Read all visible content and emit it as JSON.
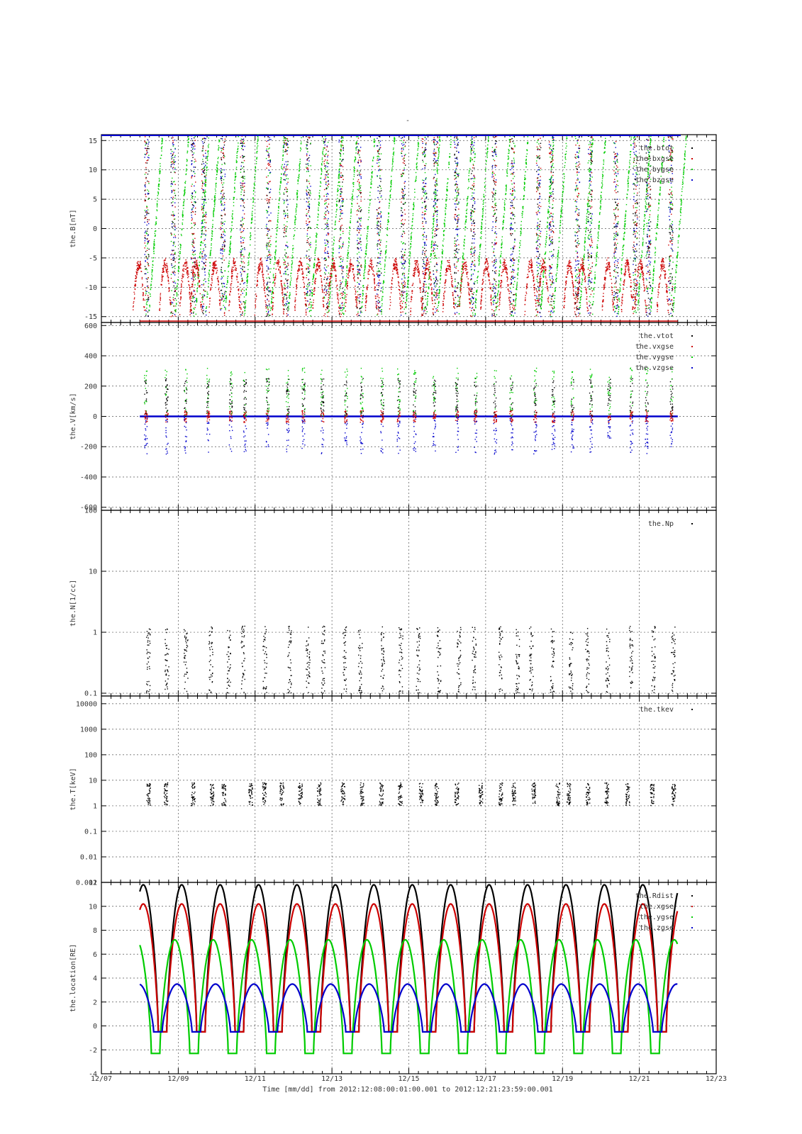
{
  "figure": {
    "top_mark": "-",
    "xaxis_label": "Time [mm/dd]  from 2012:12:08:00:01:00.001  to  2012:12:21:23:59:00.001",
    "xaxis_ticks": [
      "12/07",
      "12/09",
      "12/11",
      "12/13",
      "12/15",
      "12/17",
      "12/19",
      "12/21",
      "12/23"
    ]
  },
  "colors": {
    "black": "#000000",
    "red": "#cc0000",
    "green": "#00cc00",
    "blue": "#0000cc",
    "grid": "#555555"
  },
  "chart_data": [
    {
      "type": "scatter",
      "ylabel": "the.B[nT]",
      "ylim": [
        -16,
        16
      ],
      "yscale": "linear",
      "yticks": [
        15,
        10,
        5,
        0,
        -5,
        -10,
        -15
      ],
      "ytick_labels": [
        "15",
        "10",
        "5",
        "0",
        "-5",
        "-10",
        "-15"
      ],
      "xlim": [
        "12/07",
        "12/23"
      ],
      "grid": true,
      "legend_position": "top-right",
      "series": [
        {
          "name": "the.btot",
          "color": "black"
        },
        {
          "name": "the.bxgse",
          "color": "red"
        },
        {
          "name": "the.bygse",
          "color": "green"
        },
        {
          "name": "the.bzgse",
          "color": "blue"
        }
      ]
    },
    {
      "type": "scatter",
      "ylabel": "the.V[km/s]",
      "ylim": [
        -620,
        620
      ],
      "yscale": "linear",
      "yticks": [
        600,
        400,
        200,
        0,
        -200,
        -400,
        -600
      ],
      "ytick_labels": [
        "600",
        "400",
        "200",
        "0",
        "-200",
        "-400",
        "-600"
      ],
      "xlim": [
        "12/07",
        "12/23"
      ],
      "grid": true,
      "legend_position": "top-right",
      "series": [
        {
          "name": "the.vtot",
          "color": "black"
        },
        {
          "name": "the.vxgse",
          "color": "red"
        },
        {
          "name": "the.vygse",
          "color": "green"
        },
        {
          "name": "the.vzgse",
          "color": "blue"
        }
      ]
    },
    {
      "type": "scatter",
      "ylabel": "the.N[1/cc]",
      "ylim": [
        0.09,
        100
      ],
      "yscale": "log",
      "yticks": [
        100,
        10,
        1,
        0.1
      ],
      "ytick_labels": [
        "100",
        "10",
        "1",
        "0.1"
      ],
      "xlim": [
        "12/07",
        "12/23"
      ],
      "grid": true,
      "legend_position": "top-right",
      "series": [
        {
          "name": "the.Np",
          "color": "black"
        }
      ]
    },
    {
      "type": "scatter",
      "ylabel": "the.T[keV]",
      "ylim": [
        0.001,
        20000
      ],
      "yscale": "log",
      "yticks": [
        10000,
        1000,
        100,
        10,
        1,
        0.1,
        0.01,
        0.001
      ],
      "ytick_labels": [
        "10000",
        "1000",
        "100",
        "10",
        "1",
        "0.1",
        "0.01",
        "0.001"
      ],
      "xlim": [
        "12/07",
        "12/23"
      ],
      "grid": true,
      "legend_position": "top-right",
      "series": [
        {
          "name": "the.tkev",
          "color": "black"
        }
      ]
    },
    {
      "type": "line",
      "ylabel": "the.location[RE]",
      "ylim": [
        -4,
        12
      ],
      "yscale": "linear",
      "yticks": [
        12,
        10,
        8,
        6,
        4,
        2,
        0,
        -2,
        -4
      ],
      "ytick_labels": [
        "12",
        "10",
        "8",
        "6",
        "4",
        "2",
        "0",
        "-2",
        "-4"
      ],
      "xlim": [
        "12/07",
        "12/23"
      ],
      "grid": true,
      "legend_position": "top-right",
      "orbit_start": "12/08",
      "orbit_end": "12/22",
      "orbit_period_days": 1.0,
      "series": [
        {
          "name": "the.Rdist",
          "color": "black",
          "min": -0.5,
          "max": 11.8
        },
        {
          "name": "the.xgse",
          "color": "red",
          "min": -0.5,
          "max": 10.2
        },
        {
          "name": "the.ygse",
          "color": "green",
          "min": -2.3,
          "max": 7.2
        },
        {
          "name": "the.zgse",
          "color": "blue",
          "min": -0.5,
          "max": 3.5
        }
      ]
    }
  ]
}
